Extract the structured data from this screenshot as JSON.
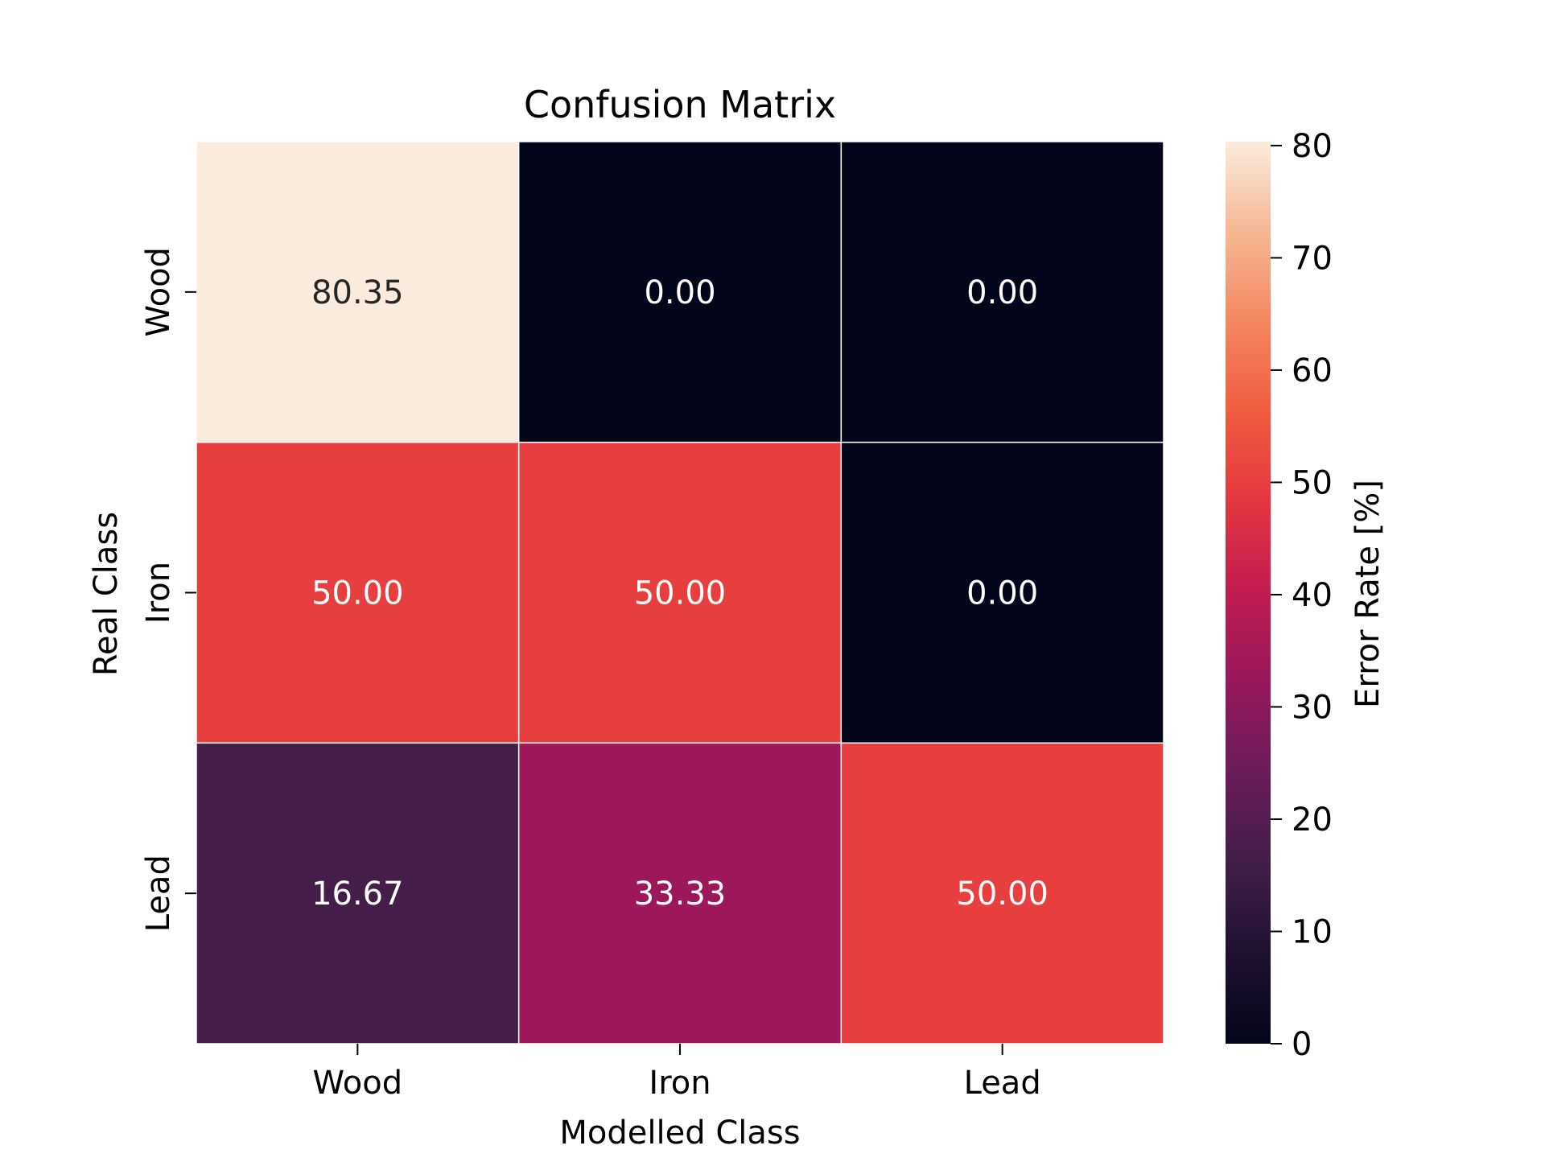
{
  "chart_data": {
    "type": "heatmap",
    "title": "Confusion Matrix",
    "xlabel": "Modelled Class",
    "ylabel": "Real Class",
    "x_categories": [
      "Wood",
      "Iron",
      "Lead"
    ],
    "y_categories": [
      "Wood",
      "Iron",
      "Lead"
    ],
    "values": [
      [
        80.35,
        0.0,
        0.0
      ],
      [
        50.0,
        50.0,
        0.0
      ],
      [
        16.67,
        33.33,
        50.0
      ]
    ],
    "value_labels": [
      [
        "80.35",
        "0.00",
        "0.00"
      ],
      [
        "50.00",
        "50.00",
        "0.00"
      ],
      [
        "16.67",
        "33.33",
        "50.00"
      ]
    ],
    "colorbar": {
      "label": "Error Rate [%]",
      "range": [
        0,
        80.35
      ],
      "ticks": [
        0,
        10,
        20,
        30,
        40,
        50,
        60,
        70,
        80
      ],
      "tick_labels": [
        "0",
        "10",
        "20",
        "30",
        "40",
        "50",
        "60",
        "70",
        "80"
      ],
      "colormap": "rocket"
    },
    "grid": false
  }
}
